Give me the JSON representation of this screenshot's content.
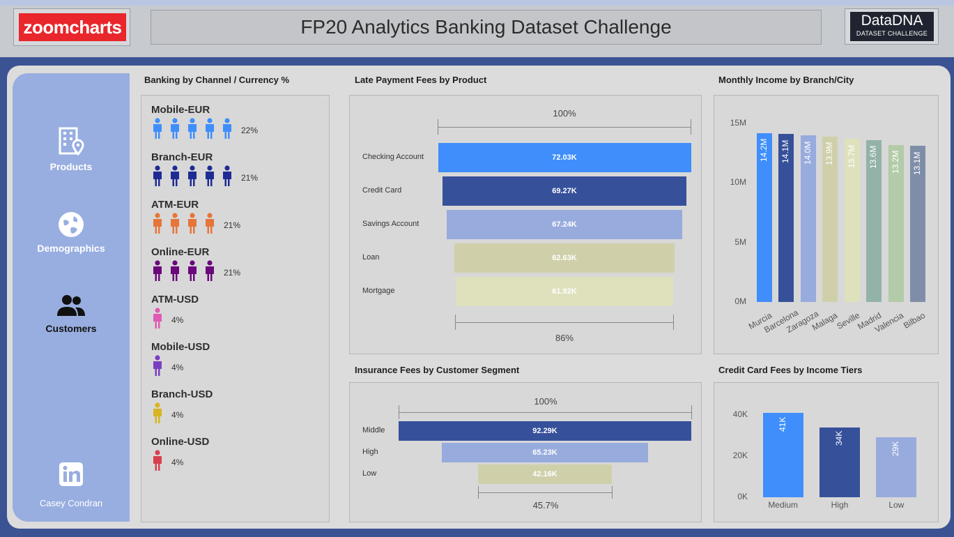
{
  "header": {
    "logo": "zoomcharts",
    "title": "FP20 Analytics Banking Dataset Challenge",
    "dna_main": "DataDNA",
    "dna_sub": "DATASET CHALLENGE"
  },
  "sidebar": {
    "items": [
      {
        "label": "Products",
        "icon": "building-location-icon"
      },
      {
        "label": "Demographics",
        "icon": "globe-icon"
      },
      {
        "label": "Customers",
        "icon": "people-icon"
      }
    ],
    "linkedin_icon": "linkedin-icon",
    "author": "Casey Condran"
  },
  "channel_panel": {
    "title": "Banking by Channel / Currency %",
    "groups": [
      {
        "name": "Mobile-EUR",
        "pct": "22%",
        "icons": 5,
        "color": "#3f8efc"
      },
      {
        "name": "Branch-EUR",
        "pct": "21%",
        "icons": 5,
        "color": "#1e2b95"
      },
      {
        "name": "ATM-EUR",
        "pct": "21%",
        "icons": 4,
        "color": "#e6753a"
      },
      {
        "name": "Online-EUR",
        "pct": "21%",
        "icons": 4,
        "color": "#6b087b"
      },
      {
        "name": "ATM-USD",
        "pct": "4%",
        "icons": 1,
        "color": "#e05bb3"
      },
      {
        "name": "Mobile-USD",
        "pct": "4%",
        "icons": 1,
        "color": "#7a3fc0"
      },
      {
        "name": "Branch-USD",
        "pct": "4%",
        "icons": 1,
        "color": "#d8b421"
      },
      {
        "name": "Online-USD",
        "pct": "4%",
        "icons": 1,
        "color": "#d8404e"
      }
    ]
  },
  "late_fees": {
    "title": "Late Payment Fees by Product",
    "top_pct": "100%",
    "bottom_pct": "86%",
    "chart_data": {
      "type": "bar",
      "categories": [
        "Checking Account",
        "Credit Card",
        "Savings Account",
        "Loan",
        "Mortgage"
      ],
      "values": [
        72.03,
        69.27,
        67.24,
        62.63,
        61.92
      ],
      "value_labels": [
        "72.03K",
        "69.27K",
        "67.24K",
        "62.63K",
        "61.92K"
      ],
      "colors": [
        "#3f8efc",
        "#36509a",
        "#98abdd",
        "#cfd0aa",
        "#dfe1bd"
      ]
    }
  },
  "income_branch": {
    "title": "Monthly Income by Branch/City",
    "chart_data": {
      "type": "bar",
      "categories": [
        "Murcia",
        "Barcelona",
        "Zaragoza",
        "Malaga",
        "Seville",
        "Madrid",
        "Valencia",
        "Bilbao"
      ],
      "values": [
        14.2,
        14.1,
        14.0,
        13.9,
        13.7,
        13.6,
        13.2,
        13.1
      ],
      "value_labels": [
        "14.2M",
        "14.1M",
        "14.0M",
        "13.9M",
        "13.7M",
        "13.6M",
        "13.2M",
        "13.1M"
      ],
      "yticks": [
        "0M",
        "5M",
        "10M",
        "15M"
      ],
      "ylim": [
        0,
        15
      ],
      "colors": [
        "#3f8efc",
        "#36509a",
        "#98abdd",
        "#cfd0aa",
        "#dfe1bd",
        "#93b2a8",
        "#b3cba8",
        "#7f8ea8"
      ]
    }
  },
  "insurance_fees": {
    "title": "Insurance Fees by Customer Segment",
    "top_pct": "100%",
    "bottom_pct": "45.7%",
    "chart_data": {
      "type": "bar",
      "categories": [
        "Middle",
        "High",
        "Low"
      ],
      "values": [
        92.29,
        65.23,
        42.16
      ],
      "value_labels": [
        "92.29K",
        "65.23K",
        "42.16K"
      ],
      "colors": [
        "#36509a",
        "#98abdd",
        "#cfd0aa"
      ]
    }
  },
  "cc_fees": {
    "title": "Credit Card Fees by Income Tiers",
    "chart_data": {
      "type": "bar",
      "categories": [
        "Medium",
        "High",
        "Low"
      ],
      "values": [
        41,
        34,
        29
      ],
      "value_labels": [
        "41K",
        "34K",
        "29K"
      ],
      "yticks": [
        "0K",
        "20K",
        "40K"
      ],
      "ylim": [
        0,
        40
      ],
      "colors": [
        "#3f8efc",
        "#36509a",
        "#98abdd"
      ]
    }
  }
}
